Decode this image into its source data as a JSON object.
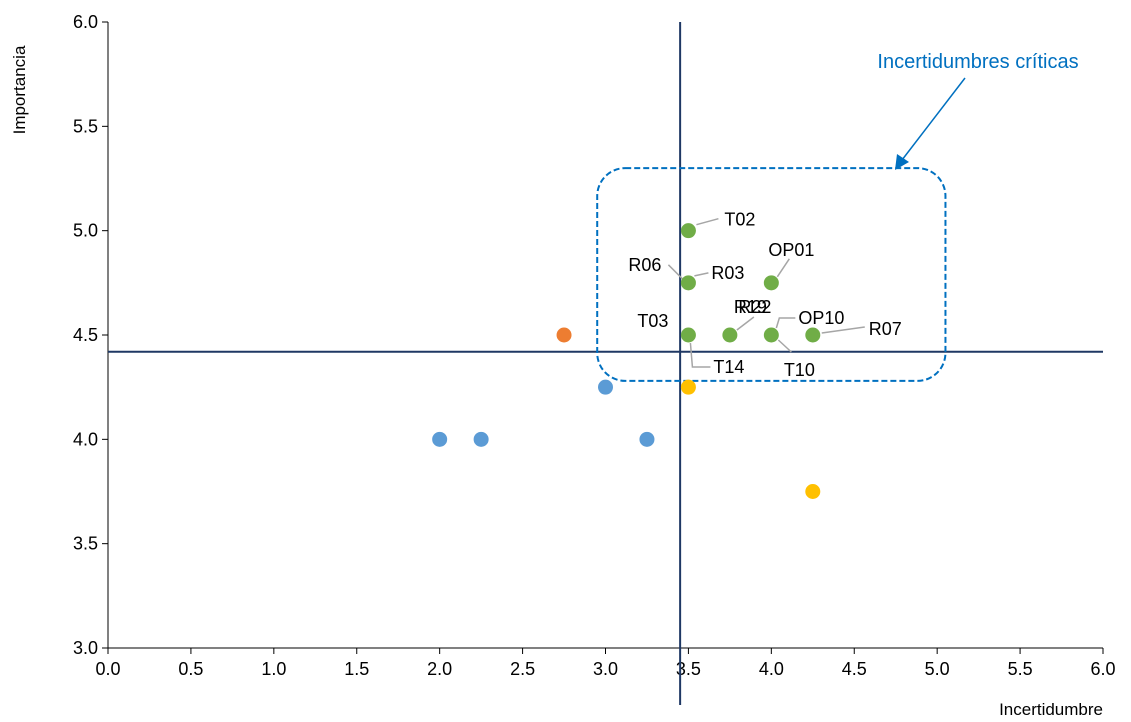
{
  "chart_data": {
    "type": "scatter",
    "xlabel": "Incertidumbre",
    "ylabel": "Importancia",
    "xlim": [
      0,
      6
    ],
    "ylim": [
      3,
      6
    ],
    "xticks": [
      "0.0",
      "0.5",
      "1.0",
      "1.5",
      "2.0",
      "2.5",
      "3.0",
      "3.5",
      "4.0",
      "4.5",
      "5.0",
      "5.5",
      "6.0"
    ],
    "yticks": [
      "3.0",
      "3.5",
      "4.0",
      "4.5",
      "5.0",
      "5.5",
      "6.0"
    ],
    "grid": false,
    "reference_lines": {
      "x": 3.45,
      "y": 4.42,
      "color": "#1f3864"
    },
    "annotation": {
      "text": "Incertidumbres críticas",
      "color": "#0070c0",
      "region": {
        "x": [
          2.95,
          5.05
        ],
        "y": [
          4.28,
          5.3
        ]
      }
    },
    "colors": {
      "green": "#70ad47",
      "blue": "#5b9bd5",
      "orange": "#ed7d31",
      "yellow": "#ffc000"
    },
    "points": [
      {
        "x": 3.5,
        "y": 5.0,
        "color": "green",
        "label": "T02"
      },
      {
        "x": 3.5,
        "y": 4.75,
        "color": "green",
        "label": "R06"
      },
      {
        "x": 3.5,
        "y": 4.75,
        "color": "green",
        "label": "R03"
      },
      {
        "x": 4.0,
        "y": 4.75,
        "color": "green",
        "label": "OP01"
      },
      {
        "x": 3.5,
        "y": 4.5,
        "color": "green",
        "label": "T03"
      },
      {
        "x": 3.5,
        "y": 4.5,
        "color": "green",
        "label": "T14"
      },
      {
        "x": 3.75,
        "y": 4.5,
        "color": "green",
        "label": "R22"
      },
      {
        "x": 3.75,
        "y": 4.5,
        "color": "green",
        "label": "R19"
      },
      {
        "x": 4.0,
        "y": 4.5,
        "color": "green",
        "label": "OP10"
      },
      {
        "x": 4.0,
        "y": 4.5,
        "color": "green",
        "label": "T10"
      },
      {
        "x": 4.25,
        "y": 4.5,
        "color": "green",
        "label": "R07"
      },
      {
        "x": 2.75,
        "y": 4.5,
        "color": "orange",
        "label": ""
      },
      {
        "x": 3.0,
        "y": 4.25,
        "color": "blue",
        "label": ""
      },
      {
        "x": 2.0,
        "y": 4.0,
        "color": "blue",
        "label": ""
      },
      {
        "x": 2.25,
        "y": 4.0,
        "color": "blue",
        "label": ""
      },
      {
        "x": 3.25,
        "y": 4.0,
        "color": "blue",
        "label": ""
      },
      {
        "x": 3.5,
        "y": 4.25,
        "color": "yellow",
        "label": ""
      },
      {
        "x": 4.25,
        "y": 3.75,
        "color": "yellow",
        "label": ""
      }
    ]
  }
}
